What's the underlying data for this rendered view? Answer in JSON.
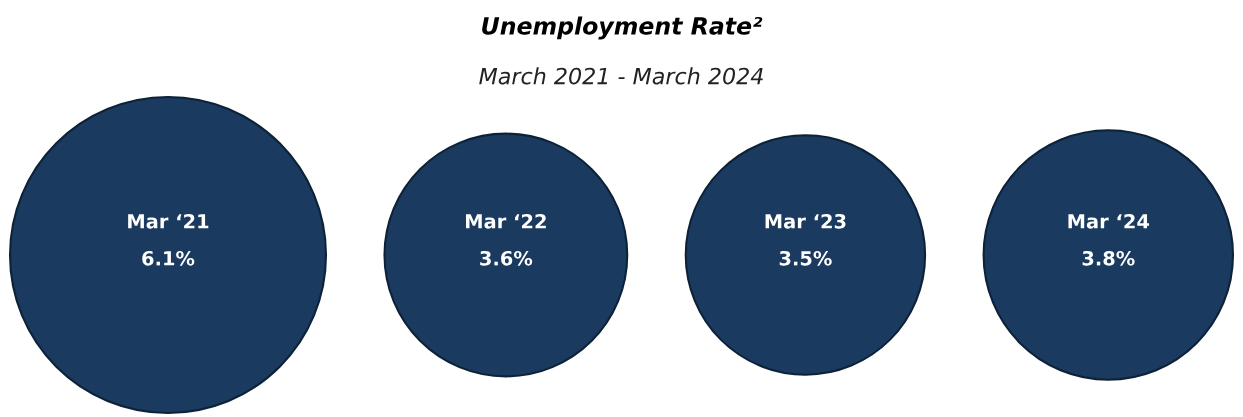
{
  "chart_data": {
    "type": "other",
    "title": "Unemployment Rate²",
    "subtitle": "March 2021 - March 2024",
    "categories": [
      "Mar ‘21",
      "Mar ‘22",
      "Mar ‘23",
      "Mar ‘24"
    ],
    "values": [
      6.1,
      3.6,
      3.5,
      3.8
    ],
    "value_labels": [
      "6.1%",
      "3.6%",
      "3.5%",
      "3.8%"
    ],
    "color": "#1a3a5f"
  }
}
